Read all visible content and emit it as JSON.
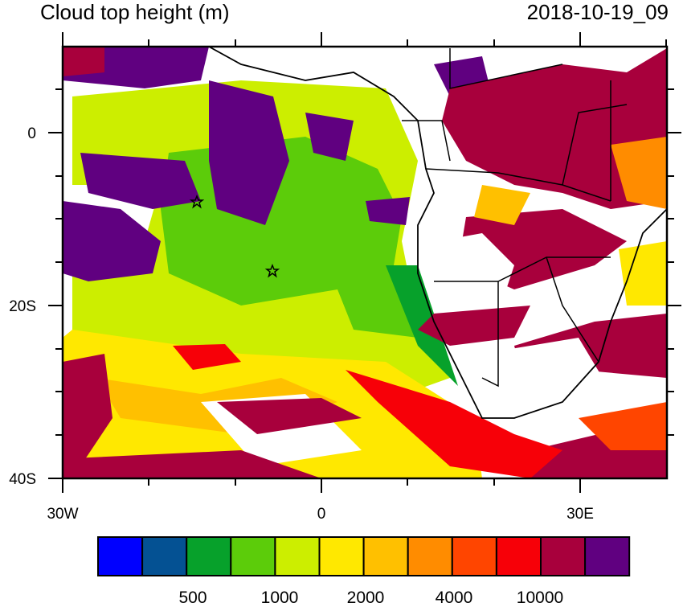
{
  "title_left": "Cloud top height (m)",
  "title_right": "2018-10-19_09",
  "map": {
    "lon_range": [
      -30,
      40
    ],
    "lat_range": [
      -40,
      10
    ],
    "x_ticks": [
      "30W",
      "0",
      "30E"
    ],
    "y_ticks": [
      "0",
      "20S",
      "40S"
    ],
    "markers": [
      {
        "name": "star",
        "lon": -14.5,
        "lat": -8
      },
      {
        "name": "star",
        "lon": -5.7,
        "lat": -16
      }
    ]
  },
  "colorbar": {
    "colors": [
      "#0000ff",
      "#045193",
      "#07a12b",
      "#5ccc0a",
      "#ccee00",
      "#ffe800",
      "#ffc000",
      "#ff8c00",
      "#ff4500",
      "#f70008",
      "#a8003c",
      "#600080"
    ],
    "labels": [
      "500",
      "1000",
      "2000",
      "4000",
      "10000"
    ]
  }
}
